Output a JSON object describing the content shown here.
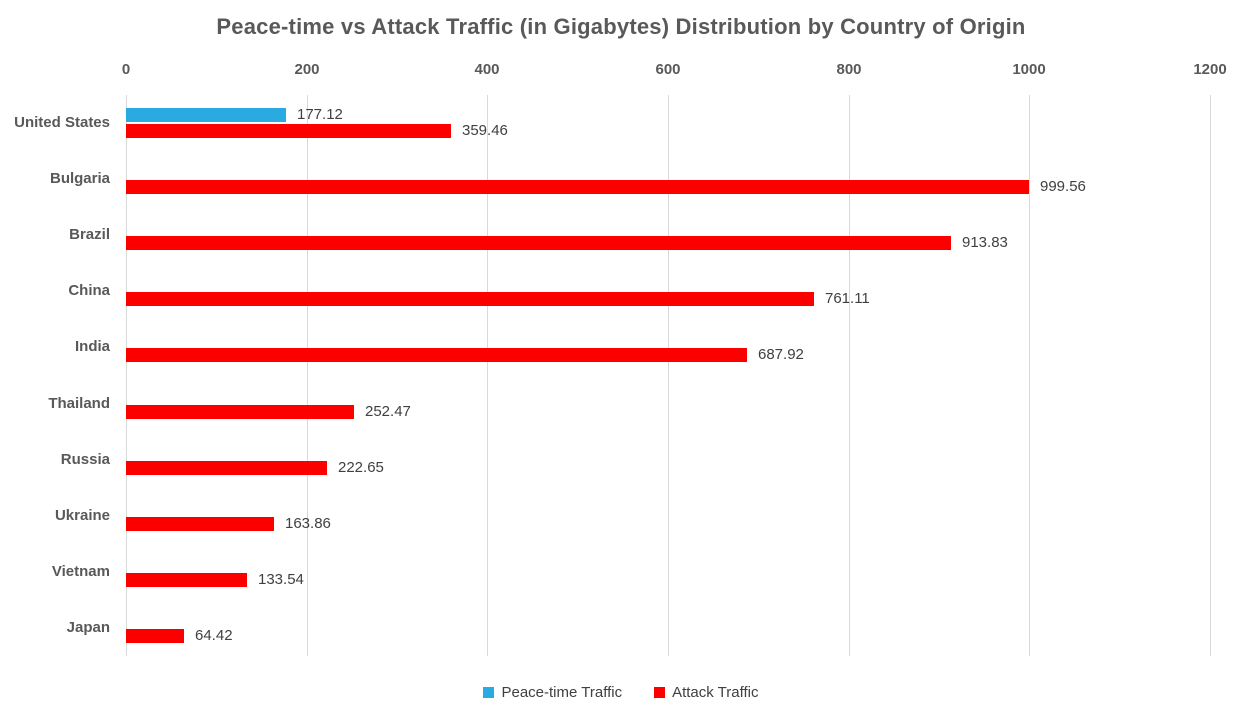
{
  "title": "Peace-time vs Attack Traffic (in Gigabytes) Distribution by Country of Origin",
  "legend": {
    "peace_label": "Peace-time Traffic",
    "attack_label": "Attack Traffic"
  },
  "colors": {
    "peace": "#29ABE2",
    "attack": "#FC0000",
    "grid": "#D9D9D9",
    "heading_text": "#595959",
    "value_text": "#404040"
  },
  "chart_data": {
    "type": "bar",
    "orientation": "horizontal",
    "title": "Peace-time vs Attack Traffic (in Gigabytes) Distribution by Country of Origin",
    "xlabel": "",
    "ylabel": "",
    "xlim": [
      0,
      1200
    ],
    "x_ticks": [
      0,
      200,
      400,
      600,
      800,
      1000,
      1200
    ],
    "grid": true,
    "legend_position": "bottom",
    "categories": [
      "United States",
      "Bulgaria",
      "Brazil",
      "China",
      "India",
      "Thailand",
      "Russia",
      "Ukraine",
      "Vietnam",
      "Japan"
    ],
    "series": [
      {
        "name": "Peace-time Traffic",
        "color": "#29ABE2",
        "values": [
          177.12,
          null,
          null,
          null,
          null,
          null,
          null,
          null,
          null,
          null
        ]
      },
      {
        "name": "Attack Traffic",
        "color": "#FC0000",
        "values": [
          359.46,
          999.56,
          913.83,
          761.11,
          687.92,
          252.47,
          222.65,
          163.86,
          133.54,
          64.42
        ]
      }
    ]
  }
}
